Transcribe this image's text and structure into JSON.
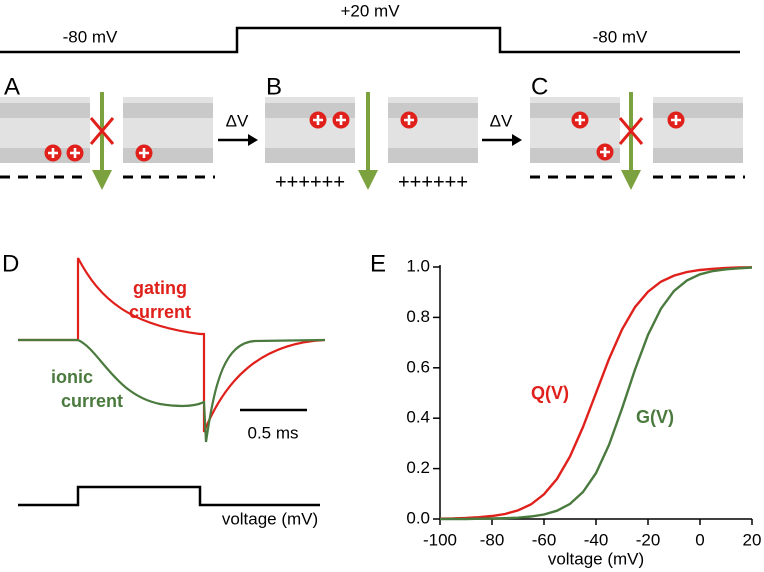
{
  "protocol_labels": [
    "-80 mV",
    "+20 mV",
    "-80 mV"
  ],
  "panel_labels": [
    "A",
    "B",
    "C",
    "D",
    "E"
  ],
  "step_labels": [
    "ΔV",
    "ΔV"
  ],
  "panel_b_charges": [
    "++++++",
    "++++++"
  ],
  "panel_d": {
    "gating_current": [
      "gating",
      "current"
    ],
    "ionic_current": [
      "ionic",
      "current"
    ],
    "scale_bar": "0.5 ms",
    "voltage_label": "voltage (mV)"
  },
  "chart_data": {
    "type": "line",
    "x_label": "voltage (mV)",
    "x": [
      -100,
      -95,
      -90,
      -85,
      -80,
      -75,
      -70,
      -65,
      -60,
      -55,
      -50,
      -45,
      -40,
      -35,
      -30,
      -25,
      -20,
      -15,
      -10,
      -5,
      0,
      5,
      10,
      15,
      20
    ],
    "series": [
      {
        "name": "Q(V)",
        "color": "#e0201b",
        "values": [
          0.001,
          0.002,
          0.004,
          0.007,
          0.012,
          0.02,
          0.034,
          0.058,
          0.098,
          0.159,
          0.248,
          0.365,
          0.5,
          0.635,
          0.752,
          0.841,
          0.902,
          0.942,
          0.966,
          0.98,
          0.988,
          0.993,
          0.996,
          0.998,
          0.999
        ]
      },
      {
        "name": "G(V)",
        "color": "#4a7a3e",
        "values": [
          0.0,
          0.0,
          0.0,
          0.001,
          0.002,
          0.003,
          0.005,
          0.01,
          0.018,
          0.033,
          0.06,
          0.107,
          0.182,
          0.294,
          0.438,
          0.593,
          0.731,
          0.835,
          0.905,
          0.947,
          0.971,
          0.984,
          0.991,
          0.995,
          0.998
        ]
      }
    ],
    "xlim": [
      -100,
      20
    ],
    "xticks": [
      -100,
      -80,
      -60,
      -40,
      -20,
      0,
      20
    ],
    "ylim": [
      0,
      1
    ],
    "yticks": [
      {
        "value": 0,
        "label": "0.0"
      },
      0.2,
      0.4,
      0.6,
      0.8,
      {
        "value": 1,
        "label": "1.0"
      }
    ]
  }
}
